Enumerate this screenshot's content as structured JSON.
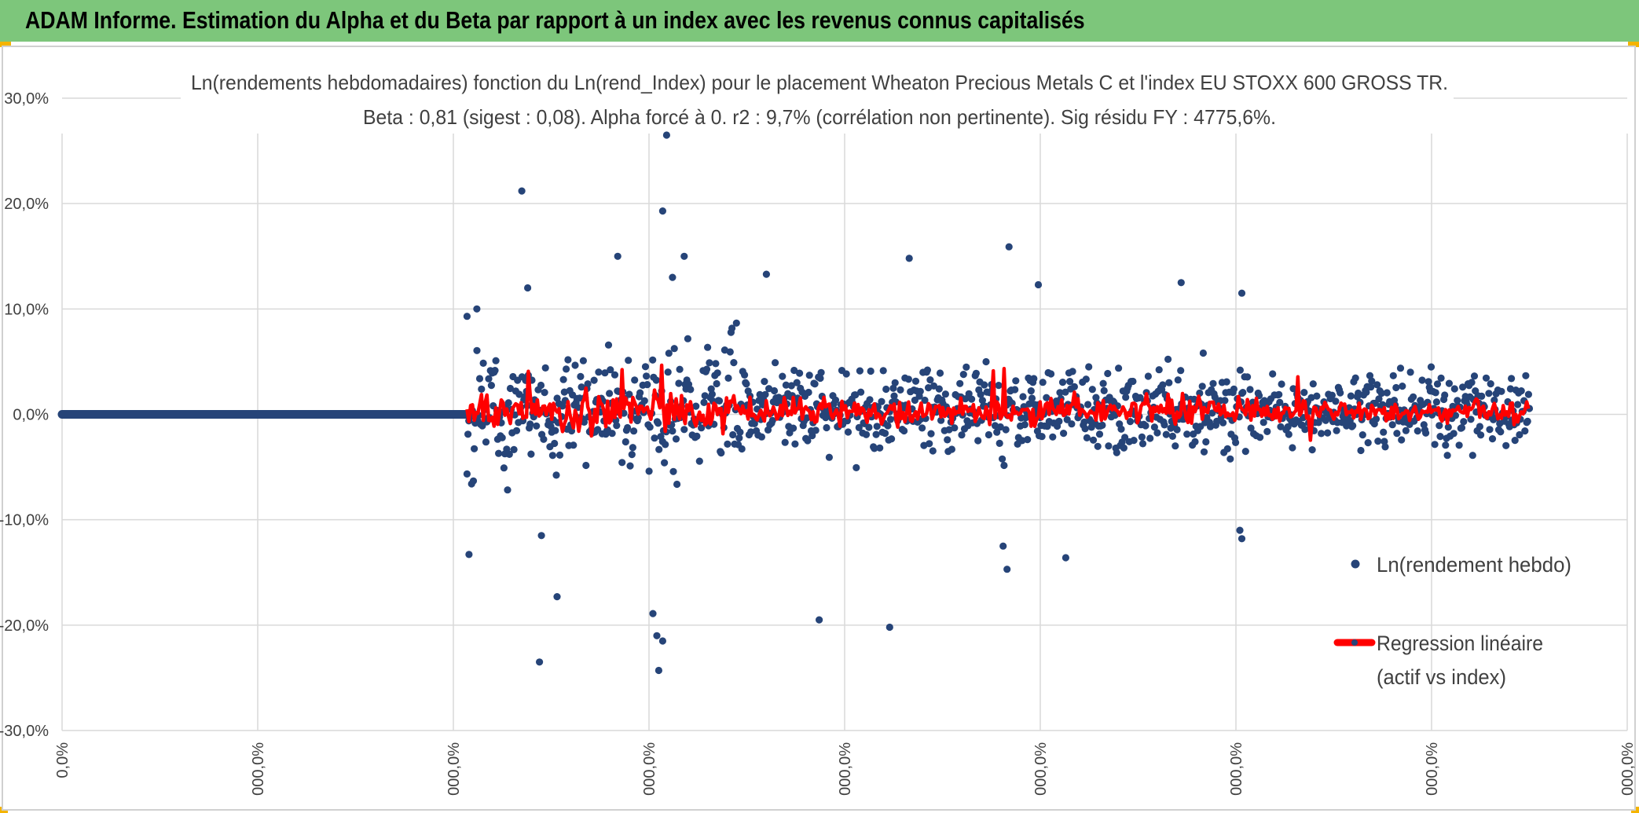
{
  "header": {
    "title": "ADAM Informe. Estimation du Alpha et du Beta par rapport à un index avec les revenus connus capitalisés"
  },
  "chart_data": {
    "type": "scatter",
    "title_line1": "Ln(rendements hebdomadaires) fonction du Ln(rend_Index) pour le placement Wheaton Precious Metals C et l'index EU STOXX 600 GROSS TR.",
    "title_line2": "Beta : 0,81 (sigest : 0,08). Alpha forcé à 0. r2 : 9,7% (corrélation non pertinente). Sig résidu FY : 4775,6%.",
    "y_ticks": [
      "30,0%",
      "20,0%",
      "10,0%",
      "0,0%",
      "-10,0%",
      "-20,0%",
      "-30,0%"
    ],
    "x_ticks": [
      "0,0%",
      "000,0%",
      "000,0%",
      "000,0%",
      "000,0%",
      "000,0%",
      "000,0%",
      "000,0%",
      "000,0%"
    ],
    "ylim": [
      -30,
      30
    ],
    "xlim": [
      0,
      8
    ],
    "grid": true,
    "legend_position": "right",
    "colors": {
      "scatter": "#264478",
      "regression": "#ff0000",
      "grid": "#d9d9d9"
    },
    "series": [
      {
        "name": "Ln(rendement hebdo)",
        "kind": "scatter"
      },
      {
        "name_line1": "Regression linéaire",
        "name_line2": "(actif vs index)",
        "kind": "line"
      }
    ],
    "flat_segment": {
      "x_start": 0,
      "x_end": 2.07,
      "y": 0
    },
    "active_x_range": [
      2.07,
      7.5
    ],
    "highlighted_points": [
      {
        "x": 2.07,
        "y": 9.3
      },
      {
        "x": 2.08,
        "y": -13.3
      },
      {
        "x": 2.12,
        "y": 10.0
      },
      {
        "x": 2.35,
        "y": 21.2
      },
      {
        "x": 2.38,
        "y": 12.0
      },
      {
        "x": 2.45,
        "y": -11.5
      },
      {
        "x": 2.44,
        "y": -23.5
      },
      {
        "x": 2.53,
        "y": -17.3
      },
      {
        "x": 2.84,
        "y": 15.0
      },
      {
        "x": 3.02,
        "y": -18.9
      },
      {
        "x": 3.05,
        "y": -24.3
      },
      {
        "x": 3.07,
        "y": 19.3
      },
      {
        "x": 3.09,
        "y": 26.5
      },
      {
        "x": 3.04,
        "y": -21.0
      },
      {
        "x": 3.07,
        "y": -21.5
      },
      {
        "x": 3.12,
        "y": 13.0
      },
      {
        "x": 3.18,
        "y": 15.0
      },
      {
        "x": 3.6,
        "y": 13.3
      },
      {
        "x": 3.87,
        "y": -19.5
      },
      {
        "x": 4.23,
        "y": -20.2
      },
      {
        "x": 4.33,
        "y": 14.8
      },
      {
        "x": 4.84,
        "y": 15.9
      },
      {
        "x": 4.81,
        "y": -12.5
      },
      {
        "x": 4.83,
        "y": -14.7
      },
      {
        "x": 4.99,
        "y": 12.3
      },
      {
        "x": 5.13,
        "y": -13.6
      },
      {
        "x": 5.72,
        "y": 12.5
      },
      {
        "x": 6.03,
        "y": 11.5
      },
      {
        "x": 6.02,
        "y": -11.0
      },
      {
        "x": 6.03,
        "y": -11.8
      }
    ]
  }
}
